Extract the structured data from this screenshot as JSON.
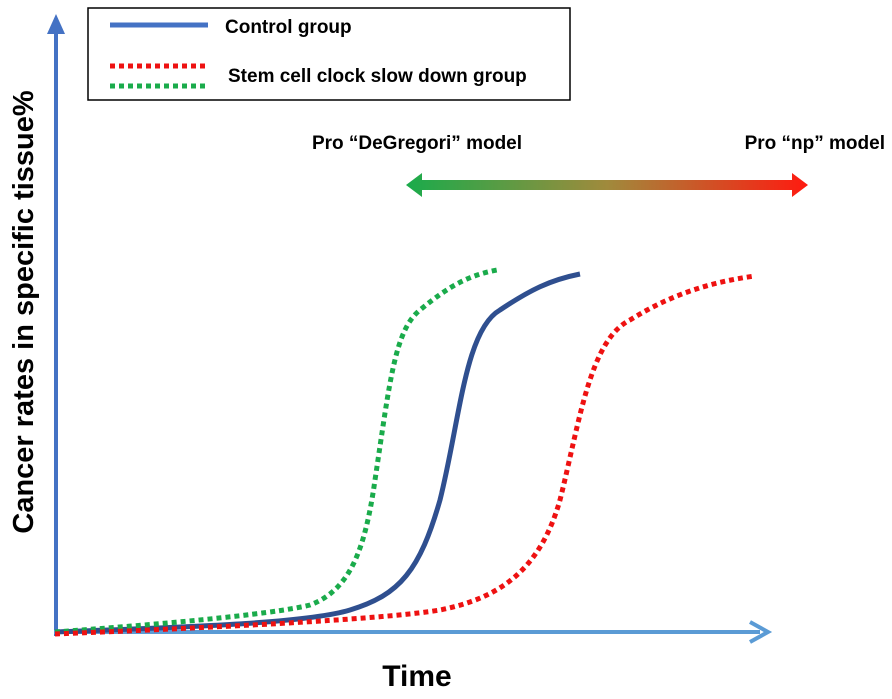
{
  "legend": {
    "entries": [
      "Control group",
      "Stem cell clock slow down group"
    ]
  },
  "annotations": {
    "left": "Pro “DeGregori” model",
    "right": "Pro “np” model"
  },
  "axes": {
    "y_label": "Cancer rates in specific tissue%",
    "x_label": "Time"
  }
}
